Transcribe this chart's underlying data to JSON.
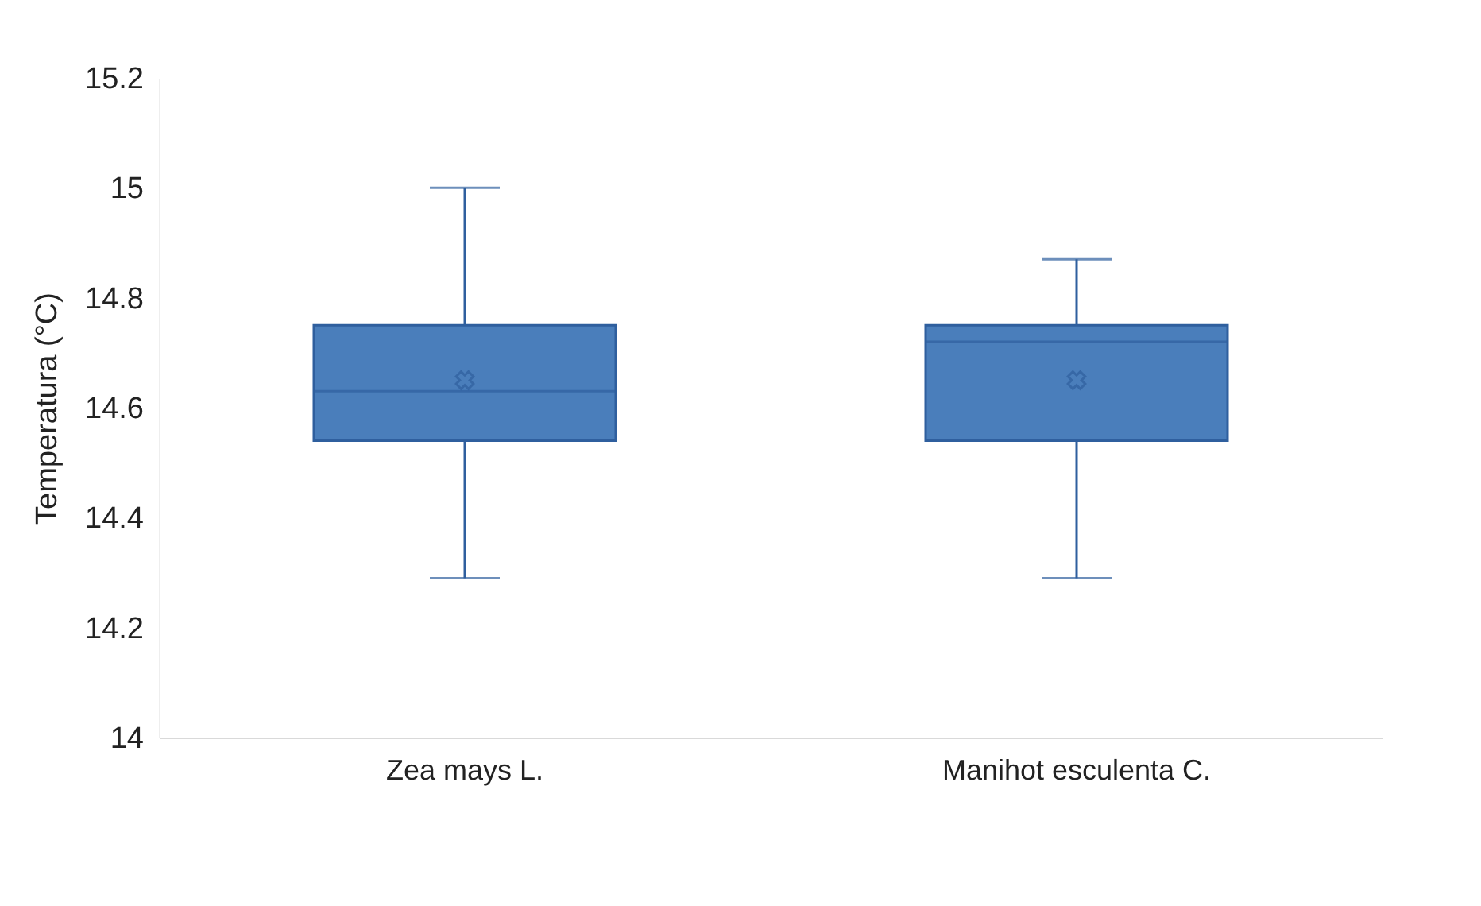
{
  "chart_data": {
    "type": "box",
    "ylabel": "Temperatura (°C)",
    "categories": [
      "Zea mays L.",
      "Manihot esculenta C."
    ],
    "boxes": [
      {
        "low": 14.29,
        "q1": 14.54,
        "median": 14.63,
        "q3": 14.75,
        "high": 15.0,
        "mean": 14.65
      },
      {
        "low": 14.29,
        "q1": 14.54,
        "median": 14.72,
        "q3": 14.75,
        "high": 14.87,
        "mean": 14.65
      }
    ],
    "color": "#4a7ebb",
    "ylim": [
      14,
      15.2
    ],
    "yticks": [
      14,
      14.2,
      14.4,
      14.6,
      14.8,
      15,
      15.2
    ],
    "grid": false,
    "marker": "cross"
  }
}
